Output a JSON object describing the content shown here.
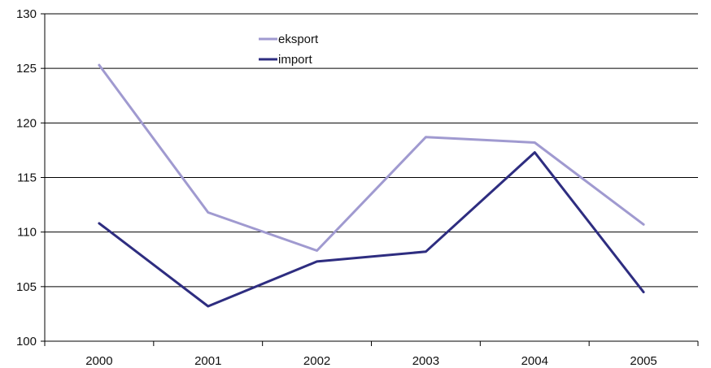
{
  "chart_data": {
    "type": "line",
    "categories": [
      "2000",
      "2001",
      "2002",
      "2003",
      "2004",
      "2005"
    ],
    "series": [
      {
        "name": "eksport",
        "color": "#a09ad0",
        "values": [
          125.3,
          111.8,
          108.3,
          118.7,
          118.2,
          110.7
        ]
      },
      {
        "name": "import",
        "color": "#2e2d80",
        "values": [
          110.8,
          103.2,
          107.3,
          108.2,
          117.3,
          104.5
        ]
      }
    ],
    "ylim": [
      100,
      130
    ],
    "yticks": [
      "100",
      "105",
      "110",
      "115",
      "120",
      "125",
      "130"
    ],
    "grid": true,
    "legend": "top-center"
  }
}
